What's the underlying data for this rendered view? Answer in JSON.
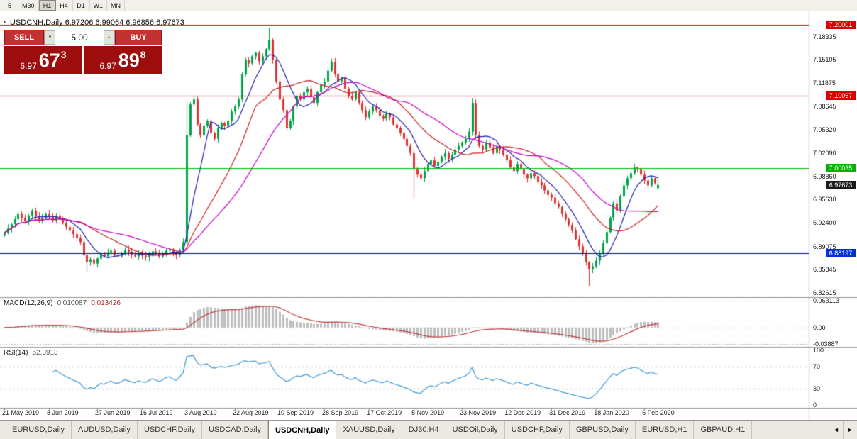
{
  "toolbar": {
    "timeframes": [
      "5",
      "M30",
      "H1",
      "H4",
      "D1",
      "W1",
      "MN"
    ],
    "active_timeframe": "H1"
  },
  "icons": {
    "chart_marker": "▲",
    "spinner_down": "▼",
    "spinner_up": "▲",
    "scroll_left": "◄",
    "scroll_right": "►"
  },
  "chart": {
    "header": "USDCNH,Daily 6.97206 6.99064 6.96856 6.97673",
    "symbol": "USDCNH,Daily",
    "ohlc": {
      "open": "6.97206",
      "high": "6.99064",
      "low": "6.96856",
      "close": "6.97673"
    }
  },
  "trade_panel": {
    "sell_label": "SELL",
    "buy_label": "BUY",
    "volume": "5.00",
    "bid": {
      "big": "6.97",
      "large": "67",
      "sup": "3"
    },
    "ask": {
      "big": "6.97",
      "large": "89",
      "sup": "8"
    }
  },
  "price_axis": {
    "labels": [
      "7.18335",
      "7.15105",
      "7.11875",
      "7.08645",
      "7.05320",
      "7.02090",
      "6.98860",
      "6.95630",
      "6.92400",
      "6.89075",
      "6.85845",
      "6.82615"
    ],
    "tags": [
      {
        "label": "7.20001",
        "bg": "#d60000"
      },
      {
        "label": "7.10067",
        "bg": "#d60000"
      },
      {
        "label": "7.00035",
        "bg": "#00b400"
      },
      {
        "label": "6.97673",
        "bg": "#1a1a1a"
      },
      {
        "label": "6.88197",
        "bg": "#0030d8"
      }
    ]
  },
  "macd_panel": {
    "name": "MACD(12,26,9)",
    "main_value": "0.010087",
    "signal_value": "0.013426",
    "axis": [
      {
        "label": "0.063113",
        "v": 0.0631
      },
      {
        "label": "0.00",
        "v": 0
      },
      {
        "label": "-0.03887",
        "v": -0.0389
      }
    ]
  },
  "rsi_panel": {
    "name": "RSI(14)",
    "value": "52.3913",
    "axis": [
      {
        "label": "100",
        "v": 100
      },
      {
        "label": "70",
        "v": 70
      },
      {
        "label": "30",
        "v": 30
      },
      {
        "label": "0",
        "v": 0
      }
    ]
  },
  "tabs": {
    "items": [
      {
        "label": "EURUSD,Daily"
      },
      {
        "label": "AUDUSD,Daily"
      },
      {
        "label": "USDCHF,Daily"
      },
      {
        "label": "USDCAD,Daily"
      },
      {
        "label": "USDCNH,Daily",
        "active": true
      },
      {
        "label": "XAUUSD,Daily"
      },
      {
        "label": "DJ30,H4"
      },
      {
        "label": "USDOil,Daily"
      },
      {
        "label": "USDCHF,Daily"
      },
      {
        "label": "GBPUSD,Daily"
      },
      {
        "label": "EURUSD,H1"
      },
      {
        "label": "GBPAUD,H1"
      }
    ]
  },
  "chart_data": {
    "type": "candlestick",
    "symbol": "USDCNH",
    "timeframe": "Daily",
    "ylim": [
      6.821,
      7.215
    ],
    "closes": [
      6.91,
      6.916,
      6.922,
      6.929,
      6.936,
      6.931,
      6.926,
      6.934,
      6.941,
      6.933,
      6.926,
      6.931,
      6.936,
      6.932,
      6.927,
      6.934,
      6.929,
      6.923,
      6.918,
      6.913,
      6.908,
      6.903,
      6.897,
      6.879,
      6.869,
      6.873,
      6.867,
      6.874,
      6.88,
      6.877,
      6.882,
      6.885,
      6.879,
      6.877,
      6.881,
      6.886,
      6.883,
      6.879,
      6.877,
      6.881,
      6.878,
      6.876,
      6.88,
      6.884,
      6.881,
      6.877,
      6.88,
      6.885,
      6.887,
      6.882,
      6.879,
      6.886,
      6.897,
      7.046,
      7.089,
      7.096,
      7.061,
      7.046,
      7.059,
      7.066,
      7.049,
      7.041,
      7.056,
      7.063,
      7.059,
      7.066,
      7.079,
      7.086,
      7.096,
      7.131,
      7.151,
      7.146,
      7.156,
      7.161,
      7.149,
      7.156,
      7.166,
      7.179,
      7.151,
      7.121,
      7.096,
      7.081,
      7.056,
      7.066,
      7.086,
      7.101,
      7.096,
      7.106,
      7.111,
      7.099,
      7.091,
      7.106,
      7.116,
      7.121,
      7.136,
      7.148,
      7.131,
      7.121,
      7.126,
      7.111,
      7.101,
      7.096,
      7.106,
      7.091,
      7.081,
      7.071,
      7.079,
      7.086,
      7.081,
      7.073,
      7.069,
      7.076,
      7.071,
      7.061,
      7.056,
      7.049,
      7.041,
      7.031,
      7.021,
      6.999,
      6.991,
      6.986,
      6.996,
      7.006,
      7.011,
      7.003,
      7.009,
      7.016,
      7.021,
      7.013,
      7.019,
      7.026,
      7.031,
      7.036,
      7.041,
      7.051,
      7.091,
      7.046,
      7.031,
      7.026,
      7.036,
      7.029,
      7.021,
      7.031,
      7.026,
      7.019,
      7.011,
      7.001,
      6.996,
      7.006,
      6.999,
      6.991,
      6.986,
      6.993,
      6.989,
      6.981,
      6.976,
      6.969,
      6.963,
      6.959,
      6.951,
      6.946,
      6.936,
      6.929,
      6.921,
      6.913,
      6.901,
      6.891,
      6.881,
      6.869,
      6.859,
      6.863,
      6.871,
      6.881,
      6.896,
      6.911,
      6.931,
      6.951,
      6.941,
      6.961,
      6.976,
      6.986,
      6.993,
      7.001,
      6.999,
      6.991,
      6.983,
      6.976,
      6.986,
      6.979,
      6.97673
    ],
    "last_candle": {
      "open": 6.97206,
      "high": 6.99064,
      "low": 6.96856,
      "close": 6.97673
    },
    "spike_highs": {
      "53": 7.092,
      "77": 7.196,
      "136": 7.098
    },
    "spike_lows": {
      "24": 6.856,
      "119": 6.958,
      "170": 6.836
    },
    "x_dates": [
      {
        "label": "21 May 2019",
        "i": 0
      },
      {
        "label": "8 Jun 2019",
        "i": 13
      },
      {
        "label": "27 Jun 2019",
        "i": 27
      },
      {
        "label": "16 Jul 2019",
        "i": 40
      },
      {
        "label": "3 Aug 2019",
        "i": 53
      },
      {
        "label": "22 Aug 2019",
        "i": 67
      },
      {
        "label": "10 Sep 2019",
        "i": 80
      },
      {
        "label": "28 Sep 2019",
        "i": 93
      },
      {
        "label": "17 Oct 2019",
        "i": 106
      },
      {
        "label": "5 Nov 2019",
        "i": 119
      },
      {
        "label": "23 Nov 2019",
        "i": 133
      },
      {
        "label": "12 Dec 2019",
        "i": 146
      },
      {
        "label": "31 Dec 2019",
        "i": 159
      },
      {
        "label": "18 Jan 2020",
        "i": 172
      },
      {
        "label": "6 Feb 2020",
        "i": 186
      }
    ],
    "hlines": [
      {
        "price": 7.20001,
        "color": "#e00000"
      },
      {
        "price": 7.10067,
        "color": "#e00000"
      },
      {
        "price": 7.00035,
        "color": "#00c000"
      },
      {
        "price": 6.88197,
        "color": "#0000e0"
      }
    ],
    "current_price": 6.97673,
    "moving_averages": [
      {
        "period": 8,
        "color": "#2222b0"
      },
      {
        "period": 21,
        "color": "#cc2020"
      },
      {
        "period": 34,
        "color": "#cc00cc"
      }
    ],
    "macd": {
      "fast": 12,
      "slow": 26,
      "signal": 9,
      "ylim": [
        -0.0389,
        0.0631
      ],
      "hist_color": "#bdbdbd",
      "signal_color": "#c04040"
    },
    "rsi": {
      "period": 14,
      "levels": [
        30,
        70
      ],
      "ylim": [
        0,
        100
      ],
      "color": "#3f9bd8"
    },
    "colors": {
      "up": "#00a34a",
      "down": "#e03232"
    },
    "legend_position": "none",
    "grid": false
  }
}
